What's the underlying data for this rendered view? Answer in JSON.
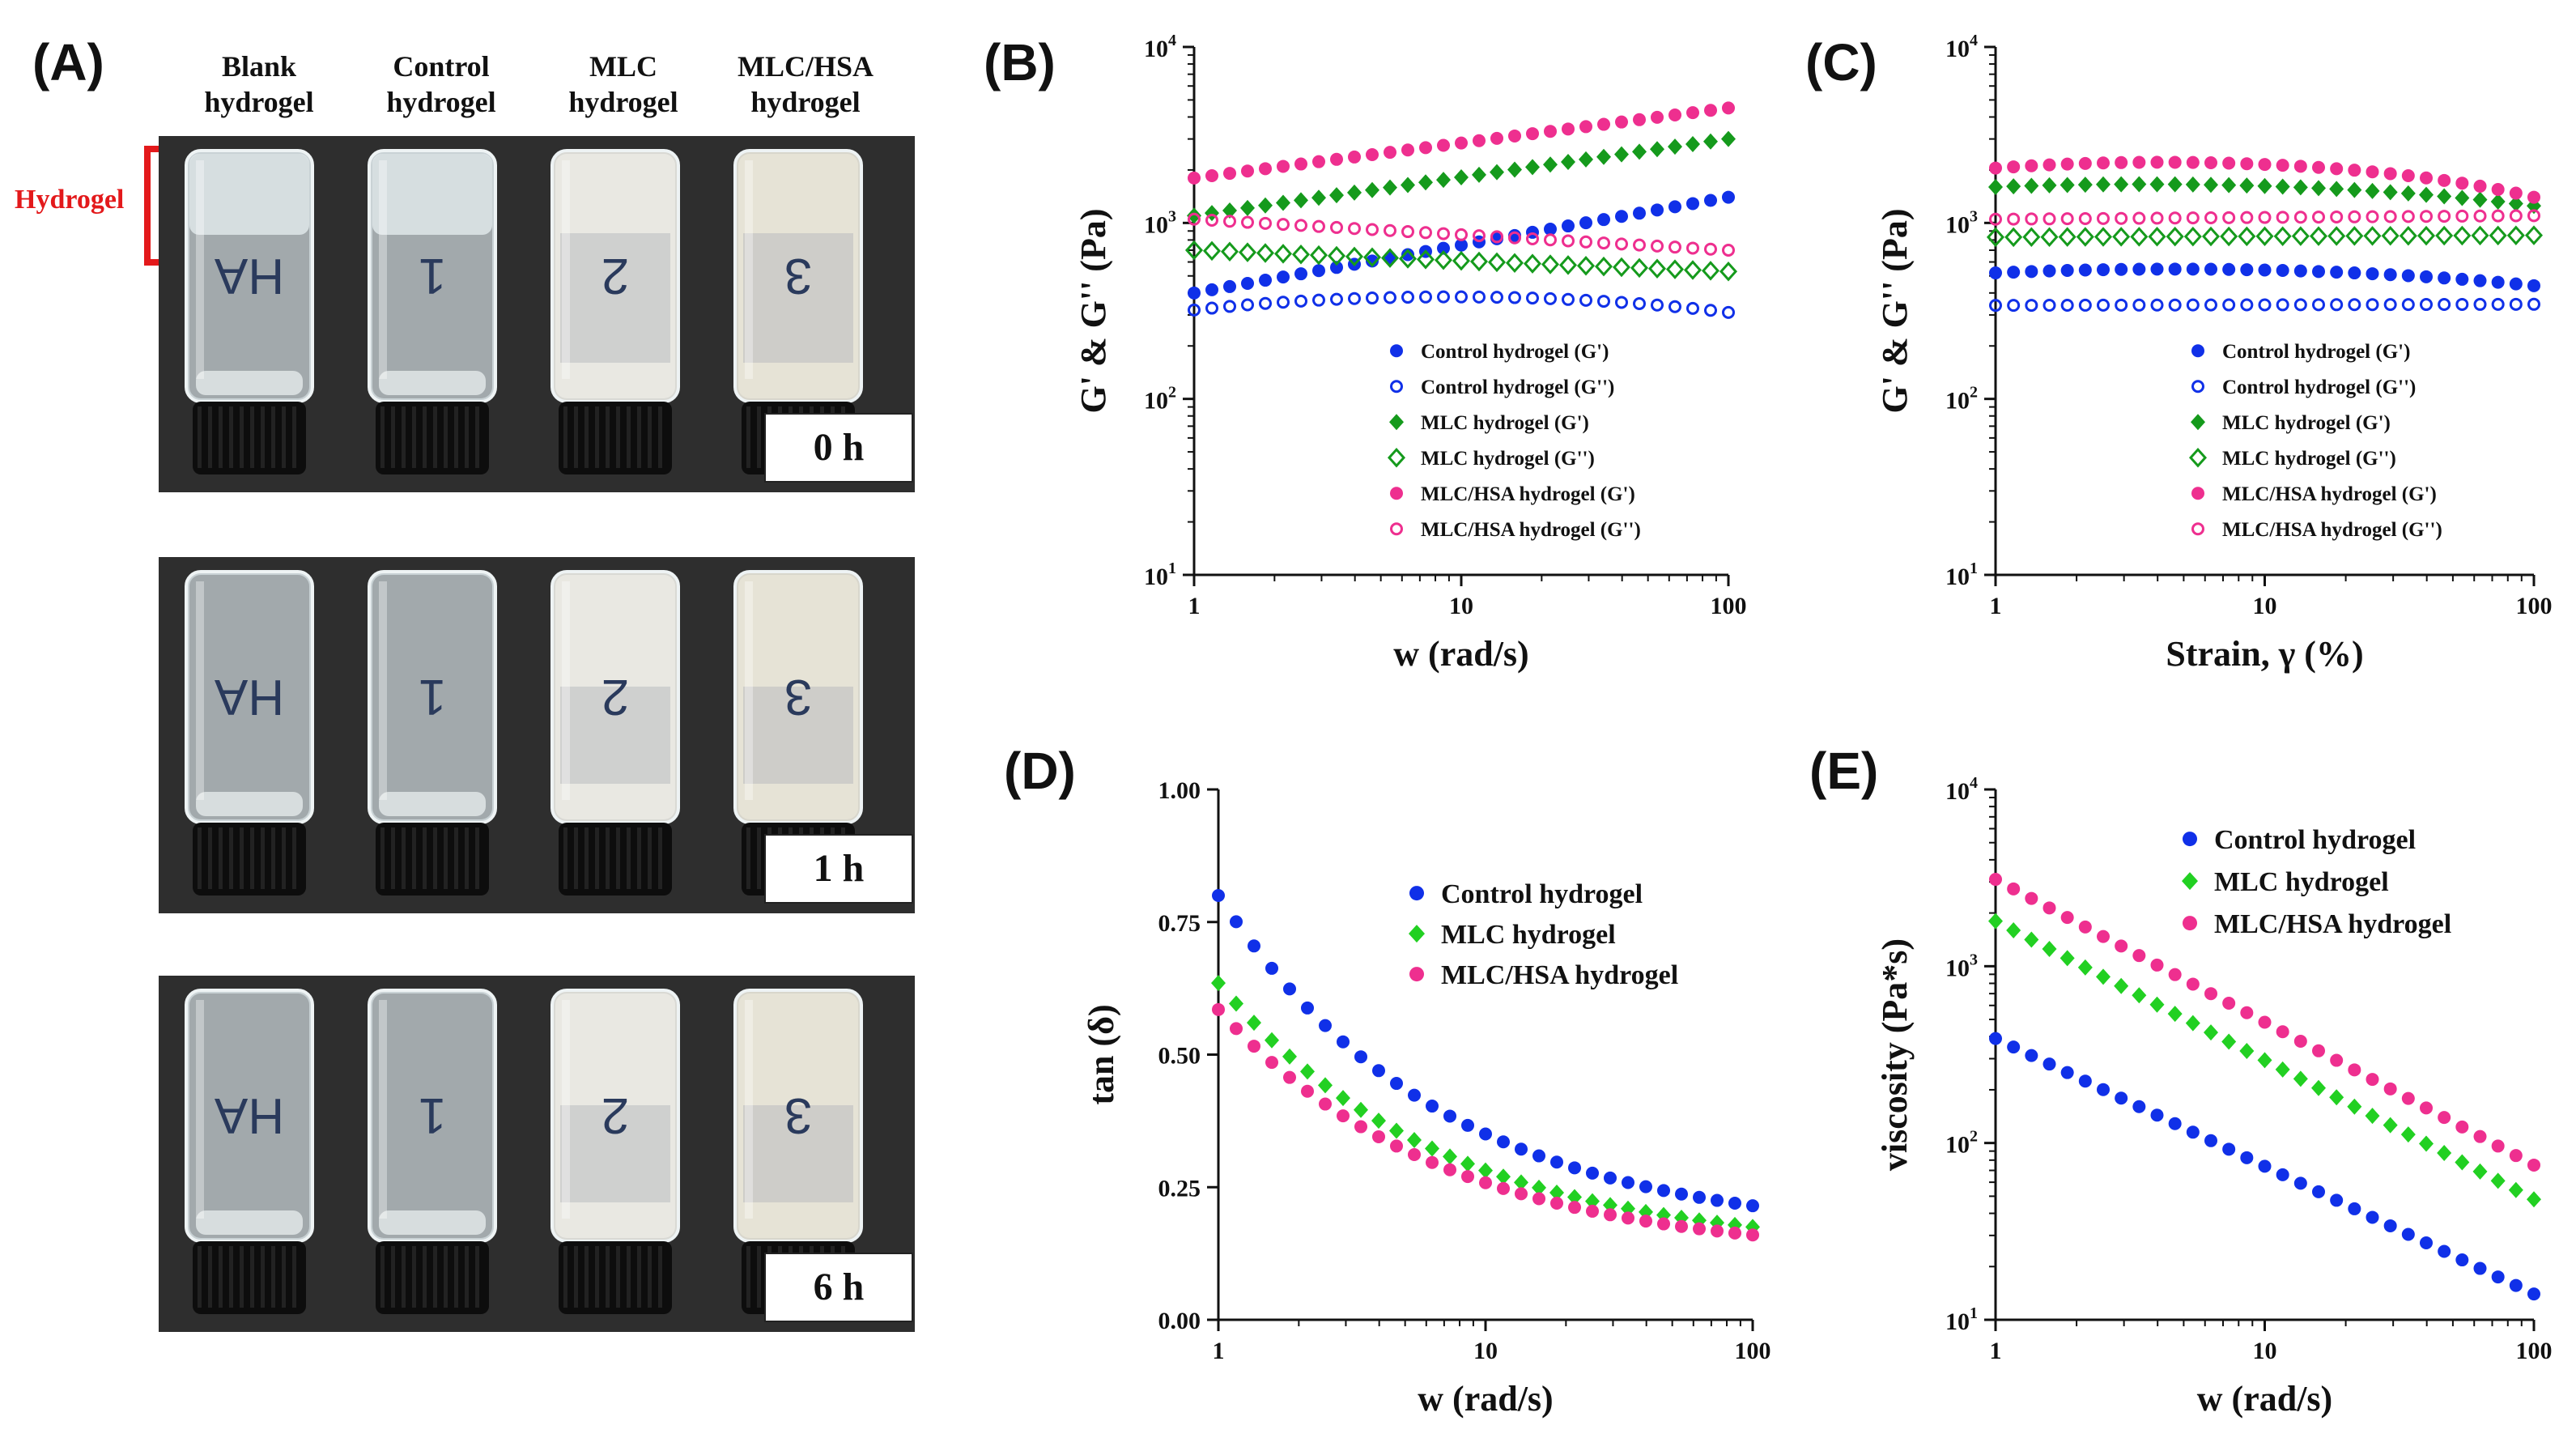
{
  "panels": {
    "A": "(A)",
    "B": "(B)",
    "C": "(C)",
    "D": "(D)",
    "E": "(E)"
  },
  "photo": {
    "columns": [
      {
        "line1": "Blank",
        "line2": "hydrogel",
        "vial_label": "HA"
      },
      {
        "line1": "Control",
        "line2": "hydrogel",
        "vial_label": "1"
      },
      {
        "line1": "MLC",
        "line2": "hydrogel",
        "vial_label": "2"
      },
      {
        "line1": "MLC/HSA",
        "line2": "hydrogel",
        "vial_label": "3"
      }
    ],
    "hydrogel_label": "Hydrogel",
    "times": [
      "0 h",
      "1 h",
      "6 h"
    ]
  },
  "colors": {
    "blue": "#1030e8",
    "green": "#159a1c",
    "lightgreen": "#22d022",
    "pink": "#ee2f8f",
    "red": "#e3191b"
  },
  "chart_data": [
    {
      "panel": "B",
      "type": "scatter",
      "xscale": "log",
      "yscale": "log",
      "xlim": [
        1,
        100
      ],
      "ylim": [
        10,
        10000
      ],
      "xlabel": "w (rad/s)",
      "ylabel": "G' & G'' (Pa)",
      "xticks": [
        "1",
        "10",
        "100"
      ],
      "yticks": [
        "10^1",
        "10^2",
        "10^3",
        "10^4"
      ],
      "legend_position": "lower-right",
      "series": [
        {
          "name": "Control hydrogel (G')",
          "color": "#1030e8",
          "marker": "filled-circle",
          "start": 400,
          "end": 1400
        },
        {
          "name": "Control hydrogel (G'')",
          "color": "#1030e8",
          "marker": "open-circle",
          "start": 320,
          "end": 310,
          "mid": 380
        },
        {
          "name": "MLC hydrogel (G')",
          "color": "#159a1c",
          "marker": "filled-diamond",
          "start": 1100,
          "end": 3000
        },
        {
          "name": "MLC hydrogel (G'')",
          "color": "#159a1c",
          "marker": "open-diamond",
          "start": 700,
          "end": 530
        },
        {
          "name": "MLC/HSA hydrogel (G')",
          "color": "#ee2f8f",
          "marker": "filled-circle",
          "start": 1800,
          "end": 4500
        },
        {
          "name": "MLC/HSA hydrogel (G'')",
          "color": "#ee2f8f",
          "marker": "open-circle",
          "start": 1050,
          "end": 700
        }
      ]
    },
    {
      "panel": "C",
      "type": "scatter",
      "xscale": "log",
      "yscale": "log",
      "xlim": [
        1,
        100
      ],
      "ylim": [
        10,
        10000
      ],
      "xlabel": "Strain, γ (%)",
      "ylabel": "G' & G'' (Pa)",
      "xticks": [
        "1",
        "10",
        "100"
      ],
      "yticks": [
        "10^1",
        "10^2",
        "10^3",
        "10^4"
      ],
      "legend_position": "lower-right",
      "series": [
        {
          "name": "Control hydrogel (G')",
          "color": "#1030e8",
          "marker": "filled-circle",
          "start": 520,
          "end": 440,
          "mid": 540
        },
        {
          "name": "Control hydrogel (G'')",
          "color": "#1030e8",
          "marker": "open-circle",
          "start": 340,
          "end": 345
        },
        {
          "name": "MLC hydrogel (G')",
          "color": "#159a1c",
          "marker": "filled-diamond",
          "start": 1600,
          "end": 1250,
          "mid": 1620
        },
        {
          "name": "MLC hydrogel (G'')",
          "color": "#159a1c",
          "marker": "open-diamond",
          "start": 830,
          "end": 850
        },
        {
          "name": "MLC/HSA hydrogel (G')",
          "color": "#ee2f8f",
          "marker": "filled-circle",
          "start": 2050,
          "end": 1400,
          "mid": 2150
        },
        {
          "name": "MLC/HSA hydrogel (G'')",
          "color": "#ee2f8f",
          "marker": "open-circle",
          "start": 1050,
          "end": 1100
        }
      ]
    },
    {
      "panel": "D",
      "type": "scatter",
      "xscale": "log",
      "yscale": "linear",
      "xlim": [
        1,
        100
      ],
      "ylim": [
        0,
        1
      ],
      "xlabel": "w (rad/s)",
      "ylabel": "tan (δ)",
      "xticks": [
        "1",
        "10",
        "100"
      ],
      "yticks": [
        "0.00",
        "0.25",
        "0.50",
        "0.75",
        "1.00"
      ],
      "legend_position": "top-right",
      "series": [
        {
          "name": "Control hydrogel",
          "color": "#1030e8",
          "marker": "filled-circle",
          "start": 0.8,
          "end": 0.215
        },
        {
          "name": "MLC hydrogel",
          "color": "#22d022",
          "marker": "filled-diamond",
          "start": 0.635,
          "end": 0.175
        },
        {
          "name": "MLC/HSA hydrogel",
          "color": "#ee2f8f",
          "marker": "filled-circle",
          "start": 0.585,
          "end": 0.16
        }
      ]
    },
    {
      "panel": "E",
      "type": "scatter",
      "xscale": "log",
      "yscale": "log",
      "xlim": [
        1,
        100
      ],
      "ylim": [
        10,
        10000
      ],
      "xlabel": "w (rad/s)",
      "ylabel": "viscosity (Pa*s)",
      "xticks": [
        "1",
        "10",
        "100"
      ],
      "yticks": [
        "10^1",
        "10^2",
        "10^3",
        "10^4"
      ],
      "legend_position": "top-right",
      "series": [
        {
          "name": "Control hydrogel",
          "color": "#1030e8",
          "marker": "filled-circle",
          "start": 390,
          "end": 14
        },
        {
          "name": "MLC hydrogel",
          "color": "#22d022",
          "marker": "filled-diamond",
          "start": 1800,
          "end": 48
        },
        {
          "name": "MLC/HSA hydrogel",
          "color": "#ee2f8f",
          "marker": "filled-circle",
          "start": 3100,
          "end": 75
        }
      ]
    }
  ]
}
